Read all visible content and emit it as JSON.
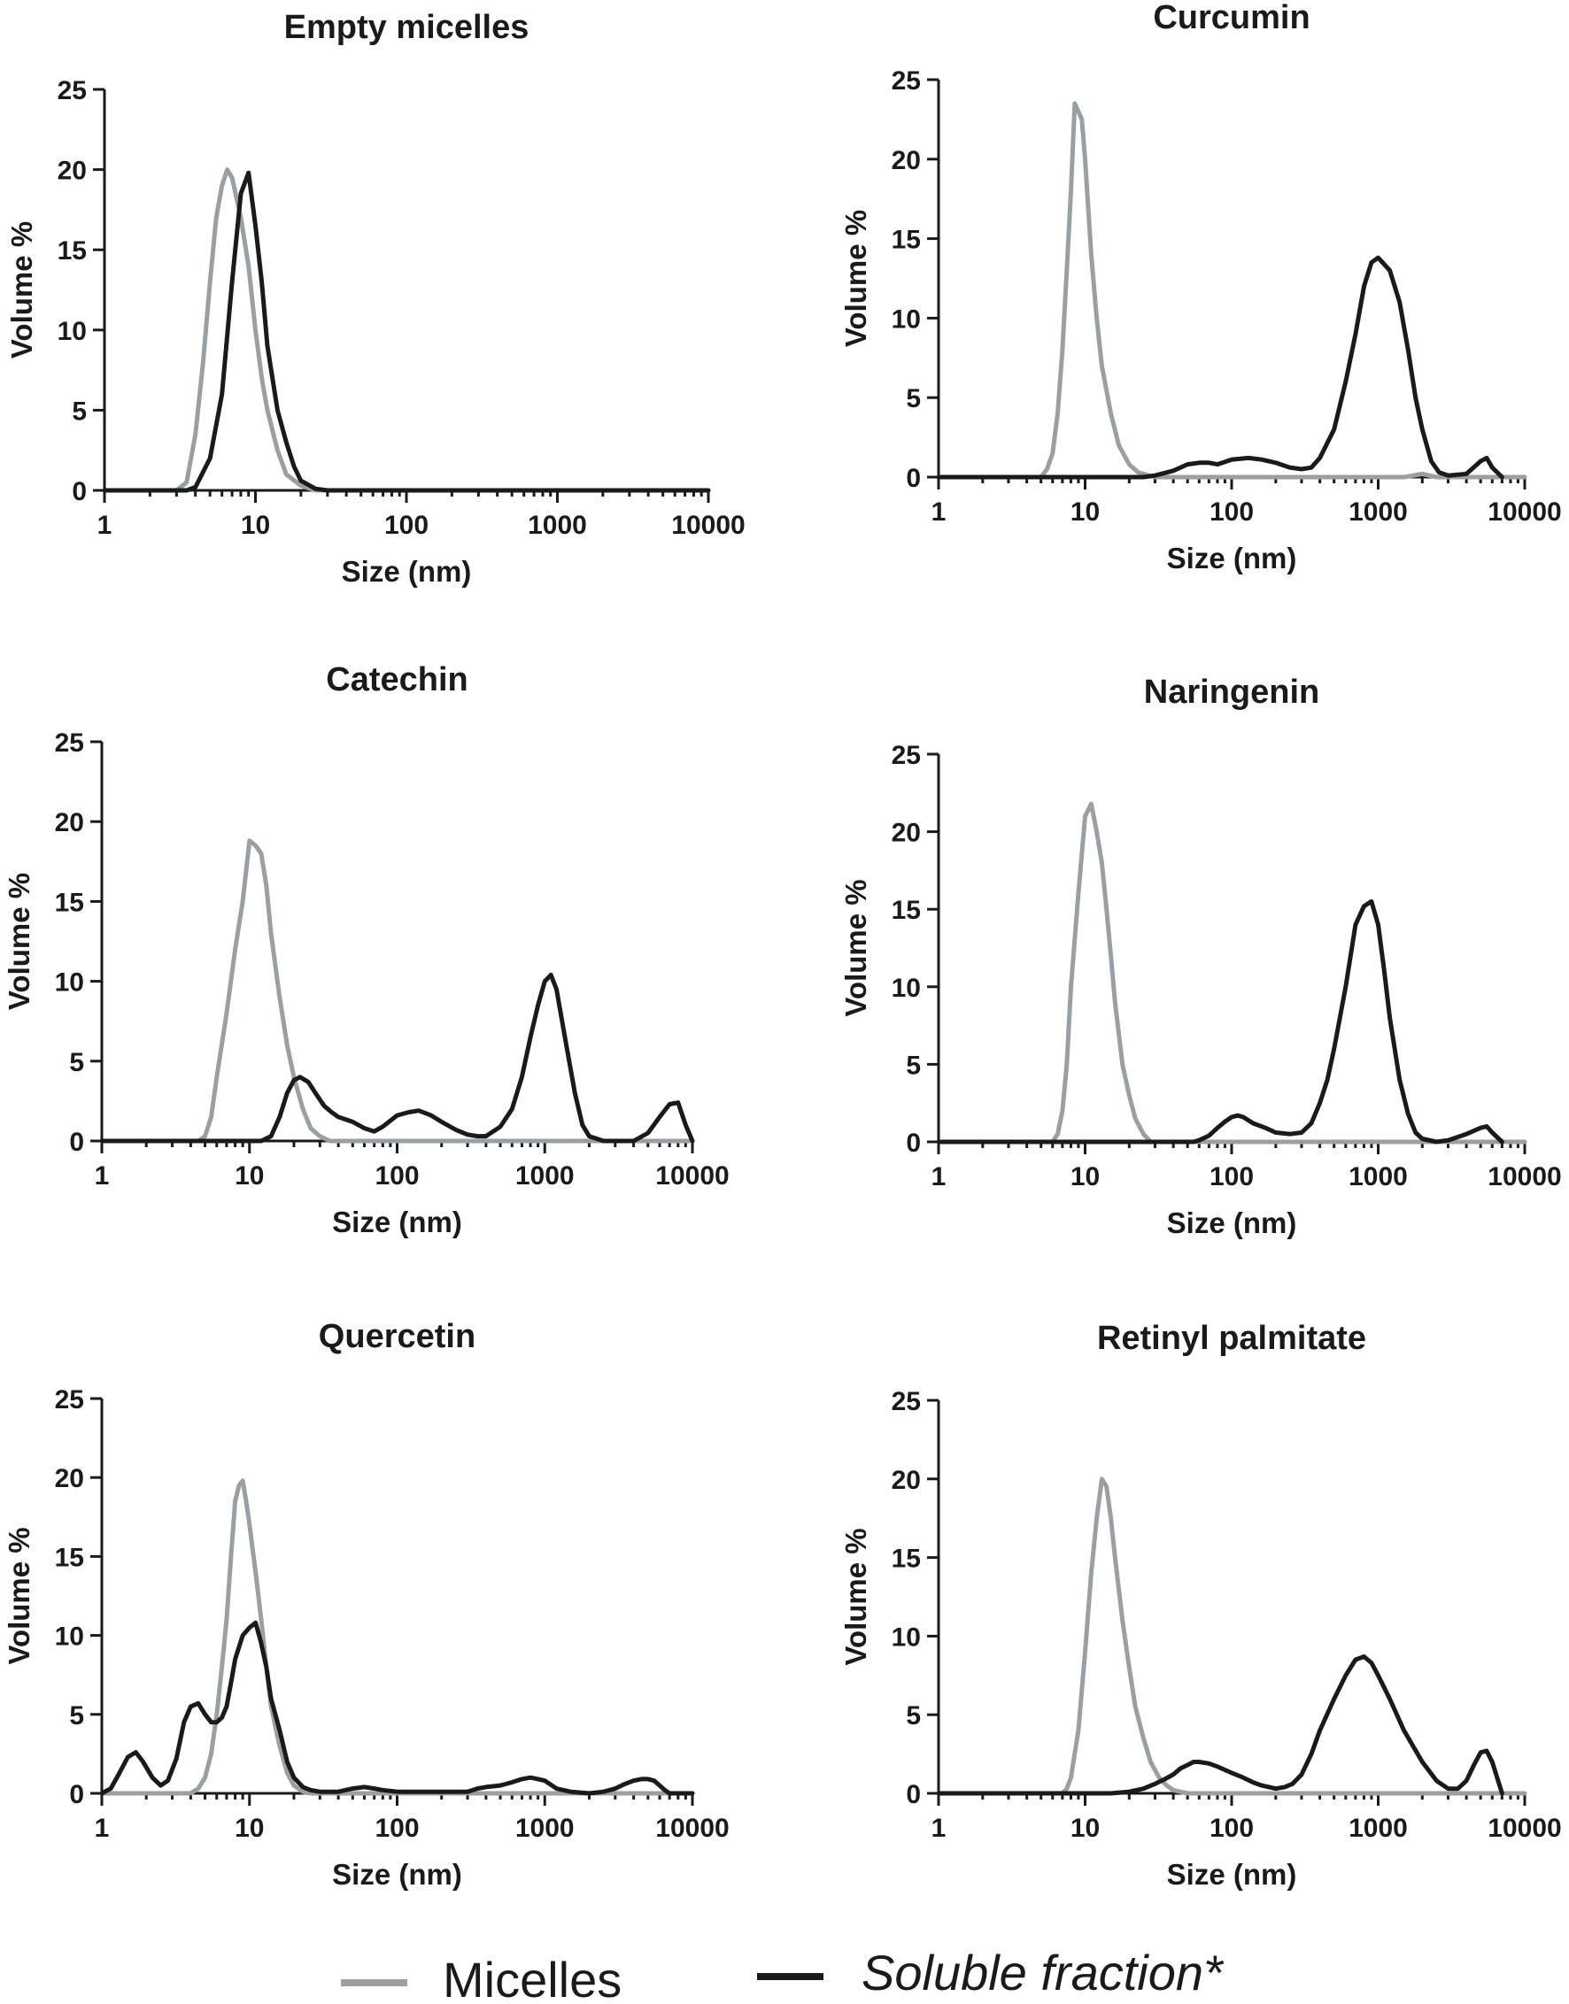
{
  "colors": {
    "micelles": "#999fa3",
    "soluble": "#1a1a1a"
  },
  "legend": [
    {
      "label": "Micelles",
      "color": "#999fa3",
      "style": "normal"
    },
    {
      "label": "Soluble fraction*",
      "color": "#1a1a1a",
      "style": "italic"
    }
  ],
  "chart_data": [
    {
      "type": "line",
      "title": "Empty micelles",
      "xlabel": "Size (nm)",
      "ylabel": "Volume %",
      "xscale": "log",
      "xlim": [
        1,
        10000
      ],
      "ylim": [
        0,
        25
      ],
      "xticks": [
        "1",
        "10",
        "100",
        "1000",
        "10000"
      ],
      "yticks": [
        "0",
        "5",
        "10",
        "15",
        "20",
        "25"
      ],
      "series": [
        {
          "name": "Micelles",
          "x": [
            1,
            3,
            3.5,
            4,
            4.5,
            5,
            5.5,
            6,
            6.5,
            7,
            8,
            9,
            10,
            11,
            12,
            14,
            16,
            20,
            25,
            30,
            10000
          ],
          "y": [
            0,
            0,
            0.5,
            3.5,
            8,
            13,
            17,
            19,
            20,
            19.5,
            17,
            14,
            10,
            7,
            5,
            2.5,
            1,
            0.3,
            0,
            0,
            0
          ]
        },
        {
          "name": "Soluble fraction*",
          "x": [
            1,
            3.5,
            4,
            5,
            6,
            7,
            8,
            9,
            10,
            11,
            12,
            14,
            16,
            18,
            20,
            25,
            30,
            10000
          ],
          "y": [
            0,
            0,
            0.2,
            2,
            6,
            13,
            18.5,
            19.8,
            16.5,
            13,
            9,
            5,
            3,
            1.5,
            0.6,
            0.1,
            0,
            0
          ]
        }
      ]
    },
    {
      "type": "line",
      "title": "Curcumin",
      "xlabel": "Size (nm)",
      "ylabel": "Volume %",
      "xscale": "log",
      "xlim": [
        1,
        10000
      ],
      "ylim": [
        0,
        25
      ],
      "xticks": [
        "1",
        "10",
        "100",
        "1000",
        "10000"
      ],
      "yticks": [
        "0",
        "5",
        "10",
        "15",
        "20",
        "25"
      ],
      "series": [
        {
          "name": "Micelles",
          "x": [
            1,
            5,
            5.5,
            6,
            6.5,
            7,
            7.5,
            8,
            8.5,
            9,
            9.5,
            10,
            11,
            12,
            13,
            15,
            17,
            20,
            23,
            30,
            1500,
            2000,
            2500,
            10000
          ],
          "y": [
            0,
            0,
            0.5,
            1.5,
            4,
            8,
            13,
            18,
            23.5,
            23,
            22.5,
            20,
            14,
            10,
            7,
            4,
            2,
            0.8,
            0.3,
            0,
            0,
            0.2,
            0,
            0
          ]
        },
        {
          "name": "Soluble fraction*",
          "x": [
            1,
            25,
            30,
            40,
            50,
            60,
            70,
            80,
            100,
            130,
            160,
            200,
            250,
            300,
            350,
            400,
            500,
            600,
            700,
            800,
            900,
            1000,
            1200,
            1400,
            1600,
            1800,
            2000,
            2300,
            2600,
            3000,
            4000,
            5000,
            5500,
            6000,
            7000
          ],
          "y": [
            0,
            0,
            0.1,
            0.4,
            0.8,
            0.9,
            0.9,
            0.8,
            1.1,
            1.2,
            1.1,
            0.9,
            0.6,
            0.5,
            0.6,
            1.2,
            3,
            6,
            9,
            12,
            13.5,
            13.8,
            13,
            11,
            8,
            5,
            3,
            1,
            0.3,
            0.1,
            0.2,
            1,
            1.2,
            0.6,
            0
          ]
        }
      ]
    },
    {
      "type": "line",
      "title": "Catechin",
      "xlabel": "Size (nm)",
      "ylabel": "Volume %",
      "xscale": "log",
      "xlim": [
        1,
        10000
      ],
      "ylim": [
        0,
        25
      ],
      "xticks": [
        "1",
        "10",
        "100",
        "1000",
        "10000"
      ],
      "yticks": [
        "0",
        "5",
        "10",
        "15",
        "20",
        "25"
      ],
      "series": [
        {
          "name": "Micelles",
          "x": [
            1,
            4.5,
            5,
            5.5,
            6,
            7,
            8,
            9,
            10,
            11,
            12,
            13,
            14,
            16,
            18,
            20,
            23,
            26,
            30,
            35,
            10000
          ],
          "y": [
            0,
            0,
            0.3,
            1.5,
            4,
            8,
            12,
            15,
            18.8,
            18.5,
            18,
            16,
            13,
            9,
            6,
            4,
            2,
            0.8,
            0.3,
            0,
            0
          ]
        },
        {
          "name": "Soluble fraction*",
          "x": [
            1,
            12,
            14,
            16,
            18,
            20,
            22,
            25,
            28,
            32,
            36,
            40,
            50,
            60,
            70,
            80,
            100,
            120,
            140,
            170,
            200,
            250,
            300,
            350,
            400,
            500,
            600,
            700,
            800,
            900,
            1000,
            1100,
            1200,
            1400,
            1600,
            1800,
            2000,
            2500,
            3000,
            4000,
            5000,
            6000,
            7000,
            8000,
            9000,
            10000
          ],
          "y": [
            0,
            0,
            0.3,
            1.5,
            3,
            3.8,
            4,
            3.7,
            3,
            2.2,
            1.8,
            1.5,
            1.2,
            0.8,
            0.6,
            0.9,
            1.6,
            1.8,
            1.9,
            1.6,
            1.2,
            0.7,
            0.4,
            0.3,
            0.3,
            0.9,
            2,
            4,
            6.5,
            8.5,
            10,
            10.4,
            9.5,
            6,
            3,
            1,
            0.3,
            0,
            0,
            0,
            0.5,
            1.5,
            2.3,
            2.4,
            1,
            0
          ]
        }
      ]
    },
    {
      "type": "line",
      "title": "Naringenin",
      "xlabel": "Size (nm)",
      "ylabel": "Volume %",
      "xscale": "log",
      "xlim": [
        1,
        10000
      ],
      "ylim": [
        0,
        25
      ],
      "xticks": [
        "1",
        "10",
        "100",
        "1000",
        "10000"
      ],
      "yticks": [
        "0",
        "5",
        "10",
        "15",
        "20",
        "25"
      ],
      "series": [
        {
          "name": "Micelles",
          "x": [
            1,
            6,
            6.5,
            7,
            7.5,
            8,
            9,
            10,
            11,
            12,
            13,
            14,
            15,
            16,
            18,
            20,
            22,
            25,
            28,
            10000
          ],
          "y": [
            0,
            0,
            0.5,
            2,
            5,
            10,
            16,
            21,
            21.8,
            20,
            18,
            15,
            12,
            9,
            5,
            3,
            1.5,
            0.5,
            0,
            0
          ]
        },
        {
          "name": "Soluble fraction*",
          "x": [
            1,
            55,
            60,
            70,
            80,
            90,
            100,
            110,
            120,
            140,
            170,
            200,
            250,
            300,
            350,
            400,
            450,
            500,
            600,
            700,
            800,
            900,
            1000,
            1100,
            1200,
            1400,
            1600,
            1800,
            2000,
            2500,
            3000,
            4000,
            5000,
            5500,
            6000,
            7000
          ],
          "y": [
            0,
            0,
            0.1,
            0.4,
            0.9,
            1.3,
            1.6,
            1.7,
            1.6,
            1.2,
            0.9,
            0.6,
            0.5,
            0.6,
            1.2,
            2.5,
            4,
            6,
            10,
            14,
            15.2,
            15.5,
            14,
            11,
            8,
            4,
            1.8,
            0.6,
            0.2,
            0,
            0.1,
            0.5,
            0.9,
            1,
            0.6,
            0
          ]
        }
      ]
    },
    {
      "type": "line",
      "title": "Quercetin",
      "xlabel": "Size (nm)",
      "ylabel": "Volume %",
      "xscale": "log",
      "xlim": [
        1,
        10000
      ],
      "ylim": [
        0,
        25
      ],
      "xticks": [
        "1",
        "10",
        "100",
        "1000",
        "10000"
      ],
      "yticks": [
        "0",
        "5",
        "10",
        "15",
        "20",
        "25"
      ],
      "series": [
        {
          "name": "Micelles",
          "x": [
            1,
            4,
            4.5,
            5,
            5.5,
            6,
            6.5,
            7,
            7.5,
            8,
            8.5,
            9,
            9.5,
            10,
            11,
            12,
            13,
            14,
            16,
            18,
            20,
            23,
            26,
            30,
            10000
          ],
          "y": [
            0,
            0,
            0.3,
            1,
            2.5,
            5,
            8,
            11,
            15,
            18.5,
            19.5,
            19.8,
            18.5,
            17,
            14,
            11,
            8,
            5.5,
            3,
            1.3,
            0.5,
            0.1,
            0,
            0,
            0
          ]
        },
        {
          "name": "Soluble fraction*",
          "x": [
            1,
            1.15,
            1.3,
            1.5,
            1.7,
            1.9,
            2.2,
            2.5,
            2.8,
            3.2,
            3.6,
            4,
            4.5,
            5,
            5.5,
            6,
            6.5,
            7,
            7.5,
            8,
            9,
            10,
            11,
            12,
            13,
            14,
            16,
            18,
            20,
            23,
            26,
            30,
            40,
            50,
            60,
            70,
            80,
            100,
            150,
            200,
            300,
            350,
            400,
            500,
            600,
            700,
            800,
            900,
            1000,
            1200,
            1500,
            2000,
            2500,
            3000,
            3500,
            4000,
            4500,
            5000,
            5500,
            6000,
            6500,
            7000,
            10000
          ],
          "y": [
            0,
            0.3,
            1.2,
            2.3,
            2.6,
            2,
            1,
            0.5,
            0.8,
            2.2,
            4.5,
            5.5,
            5.7,
            5,
            4.5,
            4.5,
            4.8,
            5.5,
            7,
            8.5,
            10,
            10.5,
            10.8,
            9.5,
            8,
            6,
            4,
            2,
            1,
            0.4,
            0.2,
            0.1,
            0.1,
            0.3,
            0.4,
            0.3,
            0.2,
            0.1,
            0.1,
            0.1,
            0.1,
            0.3,
            0.4,
            0.5,
            0.7,
            0.9,
            1,
            0.9,
            0.8,
            0.3,
            0.1,
            0,
            0.1,
            0.3,
            0.6,
            0.8,
            0.9,
            0.9,
            0.8,
            0.5,
            0.2,
            0,
            0
          ]
        }
      ]
    },
    {
      "type": "line",
      "title": "Retinyl palmitate",
      "xlabel": "Size (nm)",
      "ylabel": "Volume %",
      "xscale": "log",
      "xlim": [
        1,
        10000
      ],
      "ylim": [
        0,
        25
      ],
      "xticks": [
        "1",
        "10",
        "100",
        "1000",
        "10000"
      ],
      "yticks": [
        "0",
        "5",
        "10",
        "15",
        "20",
        "25"
      ],
      "series": [
        {
          "name": "Micelles",
          "x": [
            1,
            7,
            7.5,
            8,
            9,
            10,
            11,
            12,
            13,
            14,
            15,
            16,
            18,
            20,
            22,
            25,
            28,
            32,
            36,
            40,
            50,
            10000
          ],
          "y": [
            0,
            0,
            0.3,
            1,
            4,
            9,
            14,
            17.5,
            20,
            19.5,
            17.5,
            15,
            11,
            8,
            5.5,
            3.5,
            2,
            1,
            0.5,
            0.2,
            0,
            0
          ]
        },
        {
          "name": "Soluble fraction*",
          "x": [
            1,
            15,
            20,
            25,
            30,
            35,
            40,
            45,
            50,
            55,
            60,
            70,
            80,
            100,
            120,
            140,
            160,
            180,
            200,
            230,
            260,
            300,
            350,
            400,
            500,
            600,
            700,
            800,
            900,
            1000,
            1200,
            1500,
            2000,
            2500,
            3000,
            3500,
            4000,
            4500,
            5000,
            5500,
            6000,
            7000
          ],
          "y": [
            0,
            0,
            0.1,
            0.3,
            0.6,
            0.9,
            1.2,
            1.6,
            1.8,
            2,
            2,
            1.9,
            1.7,
            1.3,
            1,
            0.7,
            0.5,
            0.4,
            0.3,
            0.4,
            0.6,
            1.2,
            2.5,
            4,
            6,
            7.5,
            8.5,
            8.7,
            8.3,
            7.5,
            6,
            4,
            2,
            0.8,
            0.3,
            0.3,
            0.8,
            1.8,
            2.6,
            2.7,
            2,
            0
          ]
        }
      ]
    }
  ]
}
